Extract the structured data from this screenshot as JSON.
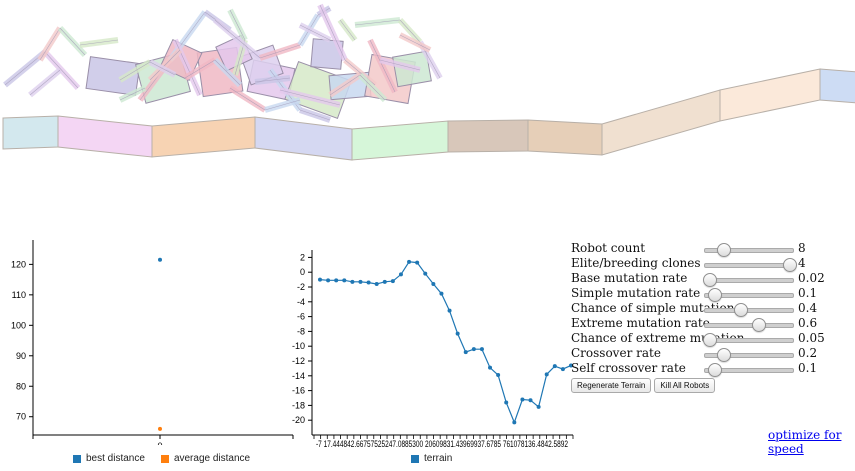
{
  "simulation": {
    "terrain_colors": [
      "#d3e8ee",
      "#f4d6f4",
      "#f7d3b3",
      "#d5d8f2",
      "#d6f6d9",
      "#d8c7ba",
      "#e6cfb8",
      "#f0e0d0",
      "#fbe9da",
      "#cddcf4"
    ],
    "robot_colors": [
      "#c9c6e6",
      "#cde8d2",
      "#f0b8c4",
      "#e4c8ec",
      "#d6e9c8",
      "#c8d8f0",
      "#f3c9c9",
      "#ddd0ee"
    ]
  },
  "distance_chart": {
    "chart_data": {
      "type": "scatter",
      "x": [
        0,
        0
      ],
      "series": [
        {
          "name": "best distance",
          "values": [
            121.5
          ],
          "color": "#1f77b4"
        },
        {
          "name": "average distance",
          "values": [
            66
          ],
          "color": "#ff7f0e"
        }
      ],
      "x_ticks": [
        "0"
      ],
      "y_ticks": [
        70,
        80,
        90,
        100,
        110,
        120
      ],
      "ylim": [
        64,
        128
      ],
      "legend_position": "bottom"
    }
  },
  "terrain_chart": {
    "chart_data": {
      "type": "line",
      "series": [
        {
          "name": "terrain",
          "color": "#1f77b4",
          "values": [
            -1,
            -1.1,
            -1.1,
            -1.1,
            -1.3,
            -1.3,
            -1.4,
            -1.6,
            -1.3,
            -1.2,
            -0.3,
            1.4,
            1.3,
            -0.2,
            -1.6,
            -2.9,
            -5.2,
            -8.3,
            -10.8,
            -10.4,
            -10.4,
            -12.9,
            -13.9,
            -17.6,
            -20.3,
            -17.2,
            -17.3,
            -18.2,
            -13.8,
            -12.7,
            -13.1,
            -12.6
          ]
        }
      ],
      "y_ticks": [
        2,
        0,
        -2,
        -4,
        -6,
        -8,
        -10,
        -12,
        -14,
        -16,
        -18,
        -20
      ],
      "ylim": [
        -22,
        3
      ],
      "x_tick_labels_text": "-7   17.444842.66757525247.0885300 20609831.43969937.6785 761078136.4842.5892",
      "legend_position": "bottom"
    }
  },
  "controls": {
    "sliders": [
      {
        "label": "Robot count",
        "value": "8",
        "fraction": 0.2
      },
      {
        "label": "Elite/breeding clones",
        "value": "4",
        "fraction": 0.95
      },
      {
        "label": "Base mutation rate",
        "value": "0.02",
        "fraction": 0.04
      },
      {
        "label": "Simple mutation rate",
        "value": "0.1",
        "fraction": 0.1
      },
      {
        "label": "Chance of simple mutation",
        "value": "0.4",
        "fraction": 0.4
      },
      {
        "label": "Extreme mutation rate",
        "value": "0.6",
        "fraction": 0.6
      },
      {
        "label": "Chance of extreme mutation",
        "value": "0.05",
        "fraction": 0.05
      },
      {
        "label": "Crossover rate",
        "value": "0.2",
        "fraction": 0.2
      },
      {
        "label": "Self crossover rate",
        "value": "0.1",
        "fraction": 0.1
      }
    ],
    "regenerate_label": "Regenerate Terrain",
    "kill_label": "Kill All Robots"
  },
  "optimize_link": "optimize for speed"
}
